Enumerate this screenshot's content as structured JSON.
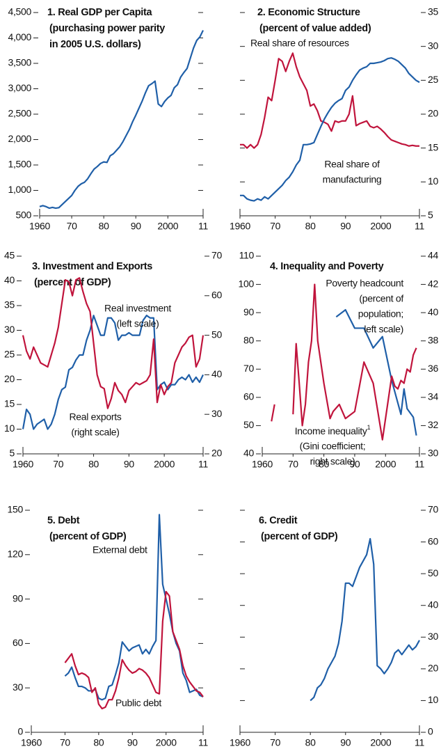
{
  "chart_data": [
    {
      "type": "line",
      "title": "1. Real GDP per Capita",
      "subtitle": [
        "(purchasing power parity",
        "in 2005 U.S. dollars)"
      ],
      "xlim": [
        1960,
        2011
      ],
      "xticks": [
        1960,
        {
          "value": 1970,
          "label": "70"
        },
        {
          "value": 1980,
          "label": "80"
        },
        {
          "value": 1990,
          "label": "90"
        },
        2000,
        {
          "value": 2011,
          "label": "11"
        }
      ],
      "ylim": [
        500,
        4500
      ],
      "yticks": [
        500,
        {
          "value": 1000,
          "label": "1,000"
        },
        {
          "value": 1500,
          "label": "1,500"
        },
        {
          "value": 2000,
          "label": "2,000"
        },
        {
          "value": 2500,
          "label": "2,500"
        },
        {
          "value": 3000,
          "label": "3,000"
        },
        {
          "value": 3500,
          "label": "3,500"
        },
        {
          "value": 4000,
          "label": "4,000"
        },
        {
          "value": 4500,
          "label": "4,500"
        }
      ],
      "x": [
        1960,
        1961,
        1962,
        1963,
        1964,
        1965,
        1966,
        1967,
        1968,
        1969,
        1970,
        1971,
        1972,
        1973,
        1974,
        1975,
        1976,
        1977,
        1978,
        1979,
        1980,
        1981,
        1982,
        1983,
        1984,
        1985,
        1986,
        1987,
        1988,
        1989,
        1990,
        1991,
        1992,
        1993,
        1994,
        1995,
        1996,
        1997,
        1998,
        1999,
        2000,
        2001,
        2002,
        2003,
        2004,
        2005,
        2006,
        2007,
        2008,
        2009,
        2010,
        2011
      ],
      "series": [
        {
          "color": "#1f5fa8",
          "values": [
            680,
            700,
            680,
            650,
            665,
            650,
            660,
            720,
            780,
            840,
            900,
            1000,
            1080,
            1130,
            1160,
            1230,
            1330,
            1420,
            1470,
            1530,
            1560,
            1550,
            1680,
            1720,
            1790,
            1860,
            1960,
            2080,
            2200,
            2350,
            2480,
            2620,
            2760,
            2920,
            3060,
            3100,
            3150,
            2700,
            2650,
            2750,
            2820,
            2870,
            3020,
            3080,
            3230,
            3320,
            3400,
            3600,
            3800,
            3950,
            4020,
            4150
          ]
        }
      ]
    },
    {
      "type": "line",
      "title": "2. Economic Structure",
      "subtitle": [
        "(percent of value added)"
      ],
      "xlim": [
        1960,
        2011
      ],
      "xticks": [
        1960,
        {
          "value": 1970,
          "label": "70"
        },
        {
          "value": 1980,
          "label": "80"
        },
        {
          "value": 1990,
          "label": "90"
        },
        2000,
        {
          "value": 2011,
          "label": "11"
        }
      ],
      "y2lim": [
        5,
        35
      ],
      "y2ticks": [
        5,
        10,
        15,
        20,
        25,
        30,
        35
      ],
      "x": [
        1960,
        1961,
        1962,
        1963,
        1964,
        1965,
        1966,
        1967,
        1968,
        1969,
        1970,
        1971,
        1972,
        1973,
        1974,
        1975,
        1976,
        1977,
        1978,
        1979,
        1980,
        1981,
        1982,
        1983,
        1984,
        1985,
        1986,
        1987,
        1988,
        1989,
        1990,
        1991,
        1992,
        1993,
        1994,
        1995,
        1996,
        1997,
        1998,
        1999,
        2000,
        2001,
        2002,
        2003,
        2004,
        2005,
        2006,
        2007,
        2008,
        2009,
        2010,
        2011
      ],
      "series": [
        {
          "label": [
            "Real share of resources"
          ],
          "color": "#c0143c",
          "axis": "y2",
          "values": [
            15.5,
            15.5,
            15,
            15.5,
            15,
            15.5,
            17,
            19.5,
            22.5,
            22,
            25,
            28.2,
            27.8,
            26.3,
            27.8,
            29,
            27,
            25.5,
            24.5,
            23.5,
            21.2,
            21.5,
            20.5,
            19,
            18.8,
            18.5,
            17.5,
            19,
            18.8,
            19,
            19,
            20,
            22.7,
            18.3,
            18.6,
            18.8,
            19,
            18.2,
            18,
            18.2,
            17.8,
            17.3,
            16.7,
            16.2,
            16,
            15.8,
            15.6,
            15.5,
            15.3,
            15.4,
            15.3,
            15.3
          ]
        },
        {
          "label": [
            "Real share of",
            "manufacturing"
          ],
          "color": "#1f5fa8",
          "axis": "y2",
          "values": [
            8,
            8,
            7.5,
            7.3,
            7.2,
            7.5,
            7.3,
            7.8,
            7.5,
            8,
            8.5,
            9,
            9.5,
            10.2,
            10.7,
            11.5,
            12.5,
            13.2,
            15.5,
            15.5,
            15.6,
            15.8,
            17,
            18.2,
            19.3,
            20.2,
            21,
            21.6,
            22,
            22.3,
            23.5,
            24,
            25,
            25.8,
            26.5,
            26.8,
            27,
            27.5,
            27.5,
            27.6,
            27.7,
            27.9,
            28.2,
            28.3,
            28.1,
            27.8,
            27.3,
            26.8,
            26,
            25.5,
            25,
            24.7
          ]
        }
      ]
    },
    {
      "type": "line",
      "title": "3. Investment and Exports",
      "subtitle": [
        "(percent of GDP)"
      ],
      "xlim": [
        1960,
        2011
      ],
      "xticks": [
        1960,
        {
          "value": 1970,
          "label": "70"
        },
        {
          "value": 1980,
          "label": "80"
        },
        {
          "value": 1990,
          "label": "90"
        },
        2000,
        {
          "value": 2011,
          "label": "11"
        }
      ],
      "ylim": [
        5,
        45
      ],
      "yticks": [
        5,
        10,
        15,
        20,
        25,
        30,
        35,
        40,
        45
      ],
      "y2lim": [
        20,
        70
      ],
      "y2ticks": [
        20,
        30,
        40,
        50,
        60,
        70
      ],
      "x": [
        1960,
        1961,
        1962,
        1963,
        1964,
        1965,
        1966,
        1967,
        1968,
        1969,
        1970,
        1971,
        1972,
        1973,
        1974,
        1975,
        1976,
        1977,
        1978,
        1979,
        1980,
        1981,
        1982,
        1983,
        1984,
        1985,
        1986,
        1987,
        1988,
        1989,
        1990,
        1991,
        1992,
        1993,
        1994,
        1995,
        1996,
        1997,
        1998,
        1999,
        2000,
        2001,
        2002,
        2003,
        2004,
        2005,
        2006,
        2007,
        2008,
        2009,
        2010,
        2011
      ],
      "series": [
        {
          "label": [
            "Real investment",
            "(left scale)"
          ],
          "color": "#1f5fa8",
          "values": [
            10,
            14,
            13,
            10,
            11,
            11.5,
            12,
            10,
            11,
            13,
            16,
            18,
            18.5,
            22,
            22.5,
            24,
            25,
            25,
            28,
            30,
            33,
            31,
            29,
            29,
            32.5,
            32.5,
            31.5,
            28,
            29,
            29,
            29.5,
            29,
            29,
            29,
            32,
            33,
            32.5,
            32.5,
            18,
            19,
            19.5,
            18,
            19,
            19,
            20,
            20.5,
            20,
            21,
            19.5,
            20.5,
            19.5,
            21
          ]
        },
        {
          "label": [
            "Real exports",
            "(right scale)"
          ],
          "color": "#c0143c",
          "axis": "y2",
          "values": [
            50,
            46,
            44,
            47,
            45,
            43,
            42.5,
            42,
            45,
            48,
            52,
            58,
            64,
            63.5,
            60,
            64,
            64.5,
            61,
            58,
            56,
            48,
            40,
            37,
            36.5,
            31.5,
            34,
            38,
            36,
            35,
            33,
            36,
            37,
            38,
            37.5,
            38,
            38.5,
            40,
            49,
            33,
            37.5,
            35,
            37,
            38,
            43,
            45,
            47,
            48,
            49.5,
            50,
            42,
            44,
            50
          ]
        }
      ]
    },
    {
      "type": "line",
      "title": "4. Inequality and Poverty",
      "xlim": [
        1960,
        2011
      ],
      "xticks": [
        1960,
        {
          "value": 1970,
          "label": "70"
        },
        {
          "value": 1980,
          "label": "80"
        },
        {
          "value": 1990,
          "label": "90"
        },
        2000,
        {
          "value": 2011,
          "label": "11"
        }
      ],
      "ylim": [
        40,
        110
      ],
      "yticks": [
        40,
        50,
        60,
        70,
        80,
        90,
        100,
        110
      ],
      "y2lim": [
        30,
        44
      ],
      "y2ticks": [
        30,
        32,
        34,
        36,
        38,
        40,
        42,
        44
      ],
      "series": [
        {
          "label": [
            "Poverty headcount",
            "(percent of",
            "population;",
            "left scale)"
          ],
          "color": "#1f5fa8",
          "x": [
            1984,
            1987,
            1990,
            1993,
            1996,
            1999,
            2002,
            2005,
            2006,
            2007,
            2009,
            2010
          ],
          "values": [
            88.5,
            91,
            84.5,
            84.5,
            77.5,
            81.5,
            66,
            54,
            63,
            56,
            53,
            46.5
          ]
        },
        {
          "label": [
            "Income inequality",
            "(Gini coefficient;",
            "right scale)"
          ],
          "label_note": "1",
          "color": "#c0143c",
          "axis": "y2",
          "x": [
            1963,
            1964,
            1965,
            1970,
            1971,
            1972,
            1973,
            1974,
            1975,
            1976,
            1977,
            1978,
            1980,
            1982,
            1983,
            1985,
            1987,
            1990,
            1993,
            1996,
            1999,
            2002,
            2003,
            2004,
            2005,
            2006,
            2007,
            2008,
            2009,
            2010
          ],
          "values": [
            32.3,
            33.5,
            null,
            32.8,
            37.8,
            35,
            32,
            33.5,
            36.5,
            38,
            42,
            38,
            35,
            32.5,
            33,
            33.5,
            32.5,
            33,
            36.5,
            35,
            31,
            35.5,
            34.8,
            34.6,
            35.2,
            35,
            36,
            35.8,
            37,
            37.5
          ]
        }
      ]
    },
    {
      "type": "line",
      "title": "5. Debt",
      "subtitle": [
        "(percent of GDP)"
      ],
      "xlim": [
        1960,
        2011
      ],
      "xticks": [
        1960,
        {
          "value": 1970,
          "label": "70"
        },
        {
          "value": 1980,
          "label": "80"
        },
        {
          "value": 1990,
          "label": "90"
        },
        2000,
        {
          "value": 2011,
          "label": "11"
        }
      ],
      "ylim": [
        0,
        150
      ],
      "yticks": [
        0,
        30,
        60,
        90,
        120,
        150
      ],
      "x": [
        1970,
        1971,
        1972,
        1973,
        1974,
        1975,
        1976,
        1977,
        1978,
        1979,
        1980,
        1981,
        1982,
        1983,
        1984,
        1985,
        1986,
        1987,
        1988,
        1989,
        1990,
        1991,
        1992,
        1993,
        1994,
        1995,
        1996,
        1997,
        1998,
        1999,
        2000,
        2001,
        2002,
        2003,
        2004,
        2005,
        2006,
        2007,
        2008,
        2009,
        2010,
        2011
      ],
      "series": [
        {
          "label": [
            "External debt"
          ],
          "color": "#1f5fa8",
          "values": [
            38,
            40,
            44,
            37,
            31,
            31,
            30,
            28,
            28,
            29,
            23,
            22,
            23,
            31,
            32,
            39,
            47,
            61,
            58,
            55,
            57,
            58,
            59,
            53,
            56,
            53,
            58,
            62,
            147,
            100,
            90,
            80,
            68,
            60,
            55,
            40,
            35,
            27,
            28,
            29,
            25,
            24
          ]
        },
        {
          "label": [
            "Public debt"
          ],
          "color": "#c0143c",
          "values": [
            47,
            50,
            53,
            45,
            39,
            40,
            39,
            37,
            27,
            30,
            19,
            16,
            17,
            22,
            22,
            28,
            37,
            49,
            45,
            42,
            40,
            41,
            43,
            42,
            40,
            37,
            32,
            27,
            26,
            75,
            95,
            92,
            68,
            62,
            56,
            45,
            38,
            34,
            31,
            28,
            27,
            24
          ]
        }
      ]
    },
    {
      "type": "line",
      "title": "6. Credit",
      "subtitle": [
        "(percent of GDP)"
      ],
      "xlim": [
        1960,
        2011
      ],
      "xticks": [
        1960,
        {
          "value": 1970,
          "label": "70"
        },
        {
          "value": 1980,
          "label": "80"
        },
        {
          "value": 1990,
          "label": "90"
        },
        2000,
        {
          "value": 2011,
          "label": "11"
        }
      ],
      "y2lim": [
        0,
        70
      ],
      "y2ticks": [
        0,
        10,
        20,
        30,
        40,
        50,
        60,
        70
      ],
      "x": [
        1980,
        1981,
        1982,
        1983,
        1984,
        1985,
        1986,
        1987,
        1988,
        1989,
        1990,
        1991,
        1992,
        1993,
        1994,
        1995,
        1996,
        1997,
        1998,
        1999,
        2000,
        2001,
        2002,
        2003,
        2004,
        2005,
        2006,
        2007,
        2008,
        2009,
        2010,
        2011
      ],
      "series": [
        {
          "color": "#1f5fa8",
          "axis": "y2",
          "values": [
            10,
            11,
            14,
            15,
            17,
            20,
            22,
            24,
            28,
            35,
            47,
            47,
            46,
            49,
            52,
            54,
            56,
            61,
            53,
            21,
            20,
            18.5,
            20,
            22,
            25,
            26,
            24.5,
            26,
            27.5,
            26,
            27,
            29
          ]
        }
      ]
    }
  ]
}
